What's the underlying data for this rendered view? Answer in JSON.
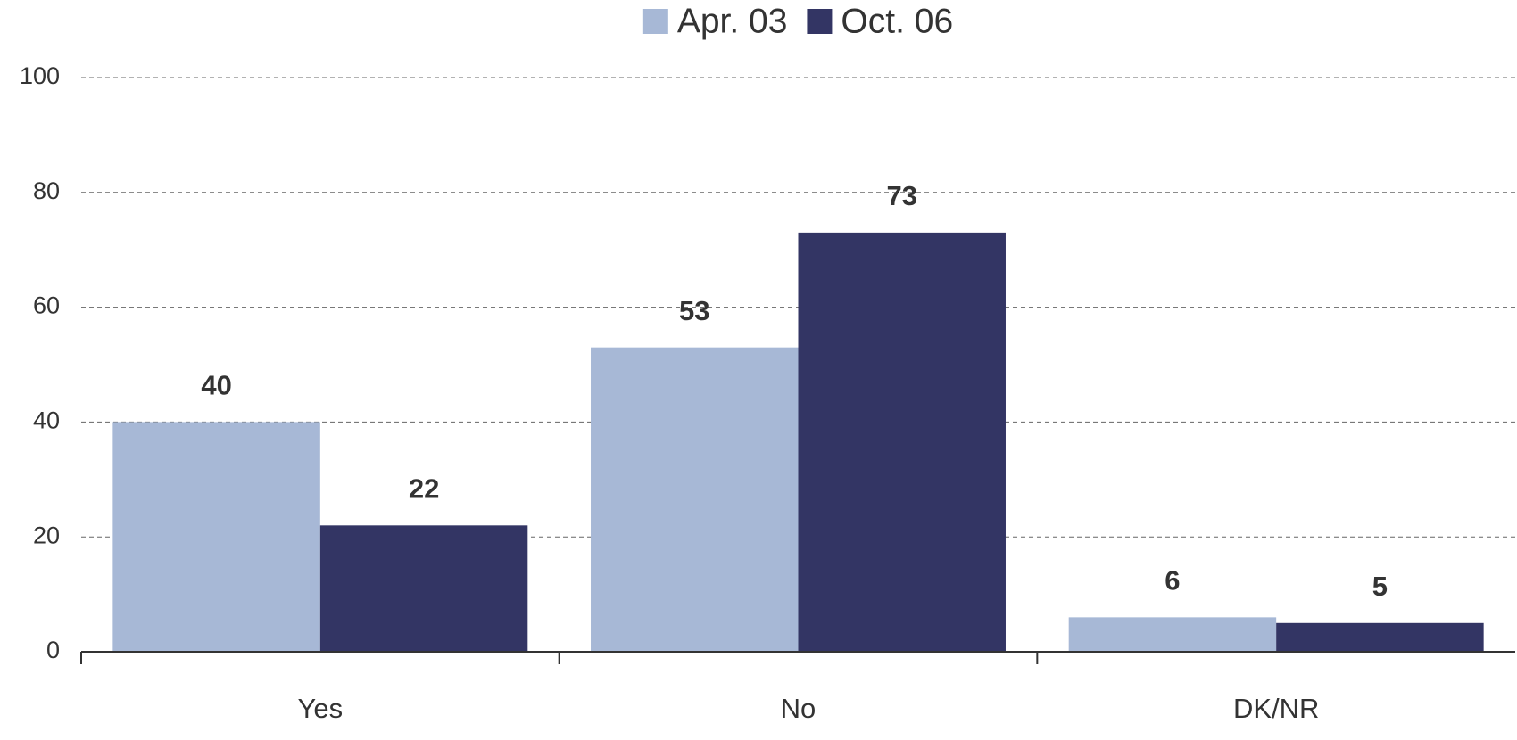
{
  "chart_data": {
    "type": "bar",
    "categories": [
      "Yes",
      "No",
      "DK/NR"
    ],
    "series": [
      {
        "name": "Apr. 03",
        "color": "#a7b8d6",
        "values": [
          40,
          53,
          6
        ]
      },
      {
        "name": "Oct. 06",
        "color": "#333564",
        "values": [
          22,
          73,
          5
        ]
      }
    ],
    "ylim": [
      0,
      100
    ],
    "yticks": [
      0,
      20,
      40,
      60,
      80,
      100
    ],
    "grid": true,
    "legend": "top"
  }
}
